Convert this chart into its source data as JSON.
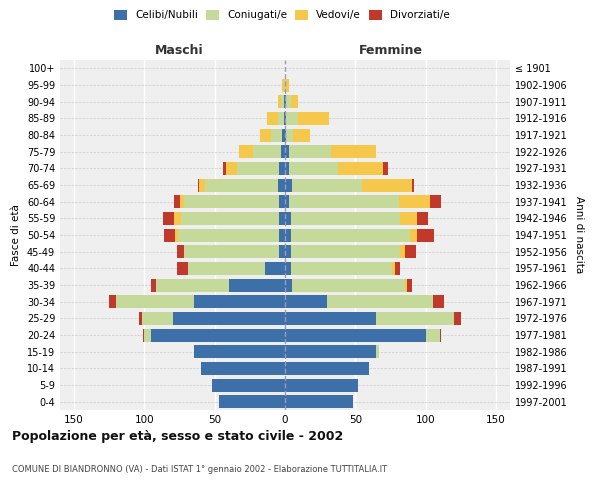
{
  "age_groups": [
    "0-4",
    "5-9",
    "10-14",
    "15-19",
    "20-24",
    "25-29",
    "30-34",
    "35-39",
    "40-44",
    "45-49",
    "50-54",
    "55-59",
    "60-64",
    "65-69",
    "70-74",
    "75-79",
    "80-84",
    "85-89",
    "90-94",
    "95-99",
    "100+"
  ],
  "birth_years": [
    "1997-2001",
    "1992-1996",
    "1987-1991",
    "1982-1986",
    "1977-1981",
    "1972-1976",
    "1967-1971",
    "1962-1966",
    "1957-1961",
    "1952-1956",
    "1947-1951",
    "1942-1946",
    "1937-1941",
    "1932-1936",
    "1927-1931",
    "1922-1926",
    "1917-1921",
    "1912-1916",
    "1907-1911",
    "1902-1906",
    "≤ 1901"
  ],
  "male": {
    "celibi": [
      47,
      52,
      60,
      65,
      95,
      80,
      65,
      40,
      14,
      4,
      4,
      4,
      4,
      5,
      4,
      3,
      2,
      1,
      1,
      0,
      0
    ],
    "coniugati": [
      0,
      0,
      0,
      0,
      5,
      22,
      55,
      52,
      55,
      68,
      72,
      70,
      68,
      52,
      30,
      20,
      8,
      4,
      2,
      1,
      0
    ],
    "vedovi": [
      0,
      0,
      0,
      0,
      0,
      0,
      0,
      0,
      0,
      0,
      2,
      5,
      3,
      4,
      8,
      10,
      8,
      8,
      2,
      1,
      0
    ],
    "divorziati": [
      0,
      0,
      0,
      0,
      1,
      2,
      5,
      3,
      8,
      5,
      8,
      8,
      4,
      1,
      2,
      0,
      0,
      0,
      0,
      0,
      0
    ]
  },
  "female": {
    "nubili": [
      48,
      52,
      60,
      65,
      100,
      65,
      30,
      5,
      4,
      4,
      4,
      4,
      3,
      5,
      3,
      3,
      1,
      1,
      1,
      0,
      0
    ],
    "coniugate": [
      0,
      0,
      0,
      2,
      10,
      55,
      75,
      80,
      72,
      78,
      85,
      78,
      78,
      50,
      35,
      30,
      5,
      8,
      3,
      1,
      0
    ],
    "vedove": [
      0,
      0,
      0,
      0,
      0,
      0,
      0,
      2,
      2,
      3,
      5,
      12,
      22,
      35,
      32,
      32,
      12,
      22,
      5,
      2,
      0
    ],
    "divorziate": [
      0,
      0,
      0,
      0,
      1,
      5,
      8,
      3,
      4,
      8,
      12,
      8,
      8,
      2,
      3,
      0,
      0,
      0,
      0,
      0,
      0
    ]
  },
  "colors": {
    "celibi_nubili": "#3d6fa8",
    "coniugati": "#c5d99a",
    "vedovi": "#f5c84c",
    "divorziati": "#c0392b"
  },
  "title": "Popolazione per età, sesso e stato civile - 2002",
  "subtitle": "COMUNE DI BIANDRONNO (VA) - Dati ISTAT 1° gennaio 2002 - Elaborazione TUTTITALIA.IT",
  "xlabel_left": "Maschi",
  "xlabel_right": "Femmine",
  "ylabel_left": "Fasce di età",
  "ylabel_right": "Anni di nascita",
  "xlim": 160,
  "legend_labels": [
    "Celibi/Nubili",
    "Coniugati/e",
    "Vedovi/e",
    "Divorziati/e"
  ],
  "bg_color": "#ffffff",
  "plot_bg": "#efefef"
}
